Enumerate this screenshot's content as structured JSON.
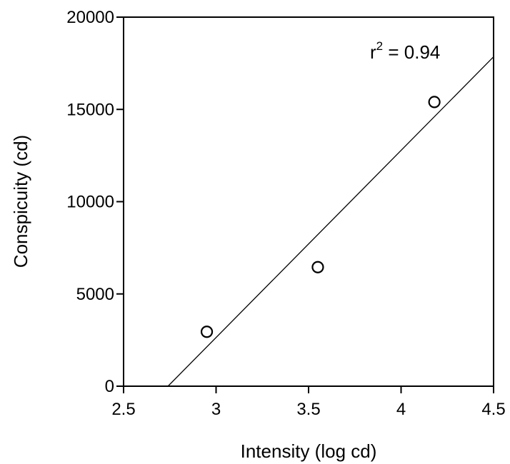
{
  "chart_data": {
    "type": "scatter",
    "xlabel": "Intensity (log cd)",
    "ylabel": "Conspicuity (cd)",
    "xlim": [
      2.5,
      4.5
    ],
    "ylim": [
      0,
      20000
    ],
    "x_ticks": [
      2.5,
      3,
      3.5,
      4,
      4.5
    ],
    "x_tick_labels": [
      "2.5",
      "3",
      "3.5",
      "4",
      "4.5"
    ],
    "y_ticks": [
      0,
      5000,
      10000,
      15000,
      20000
    ],
    "y_tick_labels": [
      "0",
      "5000",
      "10000",
      "15000",
      "20000"
    ],
    "grid": false,
    "series": [
      {
        "marker": "open-circle",
        "x": [
          2.95,
          3.55,
          4.18
        ],
        "y": [
          2950,
          6450,
          15400
        ]
      }
    ],
    "fit_line": {
      "x": [
        2.74,
        4.5
      ],
      "y": [
        0,
        17850
      ]
    },
    "annotation": {
      "base": "r",
      "superscript": "2",
      "rest": " = 0.94"
    },
    "colors": {
      "ink": "#000000",
      "background": "#ffffff"
    }
  }
}
